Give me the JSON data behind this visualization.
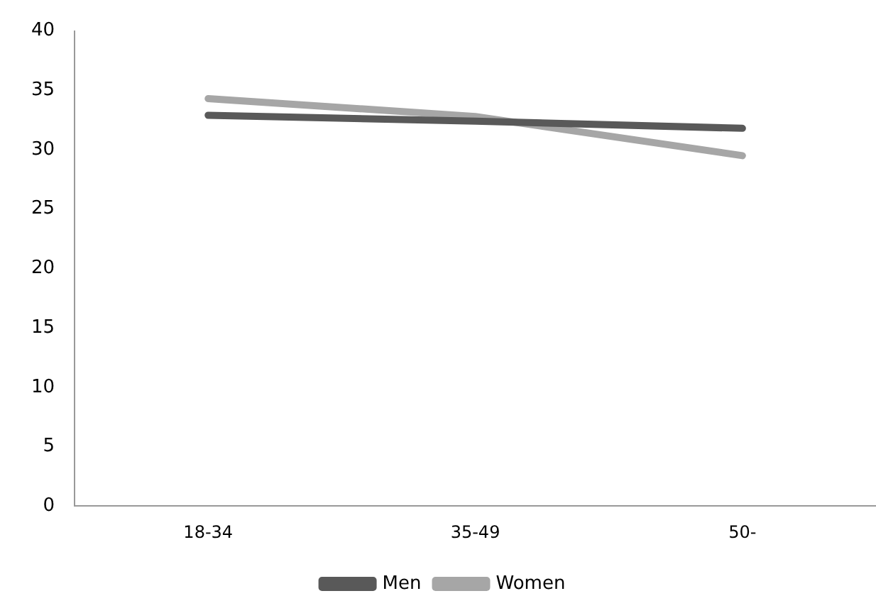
{
  "chart_data": {
    "type": "line",
    "categories": [
      "18-34",
      "35-49",
      "50-"
    ],
    "series": [
      {
        "name": "Men",
        "color": "#595959",
        "values": [
          32.9,
          32.4,
          31.8
        ]
      },
      {
        "name": "Women",
        "color": "#a6a6a6",
        "values": [
          34.3,
          32.8,
          29.5
        ]
      }
    ],
    "ylim": [
      0,
      40
    ],
    "yticks": [
      0,
      5,
      10,
      15,
      20,
      25,
      30,
      35,
      40
    ],
    "grid": false,
    "legend": "bottom",
    "marker": "none"
  }
}
